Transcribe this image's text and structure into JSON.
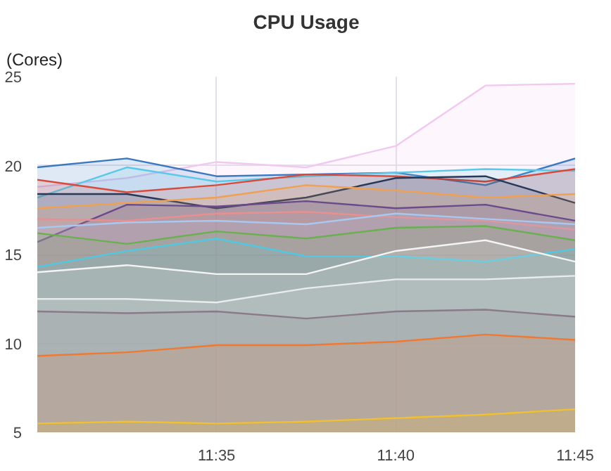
{
  "chart_data": {
    "type": "area",
    "title": "CPU Usage",
    "ylabel": "(Cores)",
    "x": [
      11.5,
      11.541667,
      11.583333,
      11.625,
      11.666667,
      11.708333,
      11.75
    ],
    "xlim": [
      11.5,
      11.75
    ],
    "xticks": [
      {
        "value": 11.583333,
        "label": "11:35"
      },
      {
        "value": 11.666667,
        "label": "11:40"
      },
      {
        "value": 11.75,
        "label": "11:45"
      }
    ],
    "ylim": [
      5,
      25
    ],
    "yticks": [
      5,
      10,
      15,
      20,
      25
    ],
    "grid": true,
    "series": [
      {
        "color": "#f0c8f0",
        "values": [
          18.8,
          19.3,
          20.2,
          19.9,
          21.1,
          24.5,
          24.6
        ]
      },
      {
        "color": "#3a78c0",
        "values": [
          19.9,
          20.4,
          19.4,
          19.5,
          19.6,
          18.9,
          20.4
        ]
      },
      {
        "color": "#5cc8e8",
        "values": [
          18.2,
          19.9,
          19.1,
          19.4,
          19.6,
          19.8,
          19.7
        ]
      },
      {
        "color": "#d84a3a",
        "values": [
          19.2,
          18.5,
          18.9,
          19.5,
          19.4,
          19.1,
          19.8
        ]
      },
      {
        "color": "#283858",
        "values": [
          18.4,
          18.4,
          17.6,
          18.2,
          19.3,
          19.4,
          17.9
        ]
      },
      {
        "color": "#f0a050",
        "values": [
          17.6,
          17.9,
          18.2,
          18.9,
          18.6,
          18.2,
          18.4
        ]
      },
      {
        "color": "#6a4a8a",
        "values": [
          15.7,
          17.8,
          17.7,
          18.0,
          17.6,
          17.8,
          16.9
        ]
      },
      {
        "color": "#e89090",
        "values": [
          17.0,
          16.9,
          17.3,
          17.4,
          17.1,
          16.9,
          16.4
        ]
      },
      {
        "color": "#a8c8f0",
        "values": [
          16.5,
          16.8,
          16.9,
          16.7,
          17.3,
          17.0,
          16.7
        ]
      },
      {
        "color": "#6ab050",
        "values": [
          16.2,
          15.6,
          16.3,
          15.9,
          16.5,
          16.6,
          15.8
        ]
      },
      {
        "color": "#50c8e0",
        "values": [
          14.3,
          15.2,
          15.9,
          14.9,
          14.9,
          14.6,
          15.3
        ]
      },
      {
        "color": "#f4f4f4",
        "values": [
          14.0,
          14.4,
          13.9,
          13.9,
          15.2,
          15.8,
          14.6
        ]
      },
      {
        "color": "#e8ecea",
        "values": [
          12.5,
          12.5,
          12.3,
          13.1,
          13.6,
          13.6,
          13.8
        ]
      },
      {
        "color": "#8a7a8a",
        "values": [
          11.8,
          11.7,
          11.8,
          11.4,
          11.8,
          11.9,
          11.5
        ]
      },
      {
        "color": "#f07830",
        "values": [
          9.3,
          9.5,
          9.9,
          9.9,
          10.1,
          10.5,
          10.2
        ]
      },
      {
        "color": "#f0c030",
        "values": [
          5.5,
          5.6,
          5.5,
          5.6,
          5.8,
          6.0,
          6.3
        ]
      }
    ]
  }
}
